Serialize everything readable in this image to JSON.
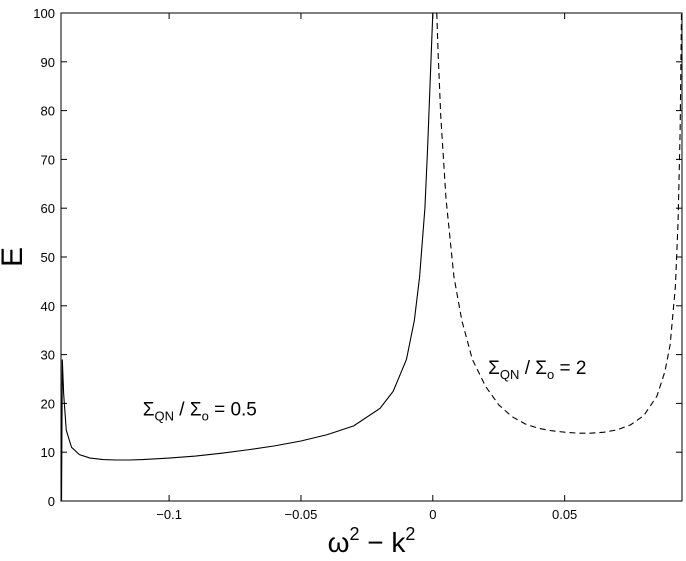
{
  "chart_data": {
    "type": "line",
    "xlabel": {
      "base": "ω",
      "sup1": "2",
      "mid": " − k",
      "sup2": "2"
    },
    "ylabel": "E",
    "xlim": [
      -0.141,
      0.0945
    ],
    "ylim": [
      0,
      100
    ],
    "xticks": [
      -0.1,
      -0.05,
      0,
      0.05
    ],
    "xtick_labels": [
      "−0.1",
      "−0.05",
      "0",
      "0.05"
    ],
    "yticks": [
      0,
      10,
      20,
      30,
      40,
      50,
      60,
      70,
      80,
      90,
      100
    ],
    "ytick_labels": [
      "0",
      "10",
      "20",
      "30",
      "40",
      "50",
      "60",
      "70",
      "80",
      "90",
      "100"
    ],
    "grid": false,
    "series": [
      {
        "style": "solid",
        "color": "#000000",
        "x": [
          -0.1408,
          -0.1405,
          -0.14,
          -0.139,
          -0.137,
          -0.134,
          -0.13,
          -0.125,
          -0.12,
          -0.115,
          -0.11,
          -0.1,
          -0.09,
          -0.08,
          -0.07,
          -0.06,
          -0.05,
          -0.04,
          -0.03,
          -0.02,
          -0.015,
          -0.01,
          -0.007,
          -0.005,
          -0.003,
          -0.002,
          -0.001,
          -0.0005,
          0
        ],
        "y": [
          0,
          29,
          22,
          14.5,
          11,
          9.5,
          8.8,
          8.5,
          8.4,
          8.4,
          8.5,
          8.8,
          9.2,
          9.8,
          10.5,
          11.3,
          12.3,
          13.6,
          15.4,
          19,
          22.5,
          29,
          37,
          46,
          60,
          72,
          86,
          93,
          100
        ]
      },
      {
        "style": "dashed",
        "color": "#000000",
        "x": [
          0.0015,
          0.002,
          0.003,
          0.005,
          0.008,
          0.011,
          0.015,
          0.02,
          0.025,
          0.03,
          0.035,
          0.04,
          0.045,
          0.05,
          0.055,
          0.06,
          0.065,
          0.07,
          0.075,
          0.08,
          0.085,
          0.088,
          0.09,
          0.092,
          0.093,
          0.0938,
          0.0943
        ],
        "y": [
          100,
          92,
          79,
          62,
          46,
          37,
          29,
          23.5,
          19.7,
          17.3,
          15.8,
          14.9,
          14.4,
          14.1,
          13.9,
          13.9,
          14.1,
          14.6,
          15.6,
          17.5,
          21.5,
          26.5,
          32,
          44,
          57,
          76,
          100
        ]
      }
    ],
    "annotations": [
      {
        "sigma": "Σ",
        "sub": "QN",
        "slash": " / ",
        "sub2": "o",
        "rest": " = 0.5",
        "x": -0.11,
        "y": 17.5
      },
      {
        "sigma": "Σ",
        "sub": "QN",
        "slash": " / ",
        "sub2": "o",
        "rest": " = 2",
        "x": 0.021,
        "y": 26
      }
    ]
  }
}
